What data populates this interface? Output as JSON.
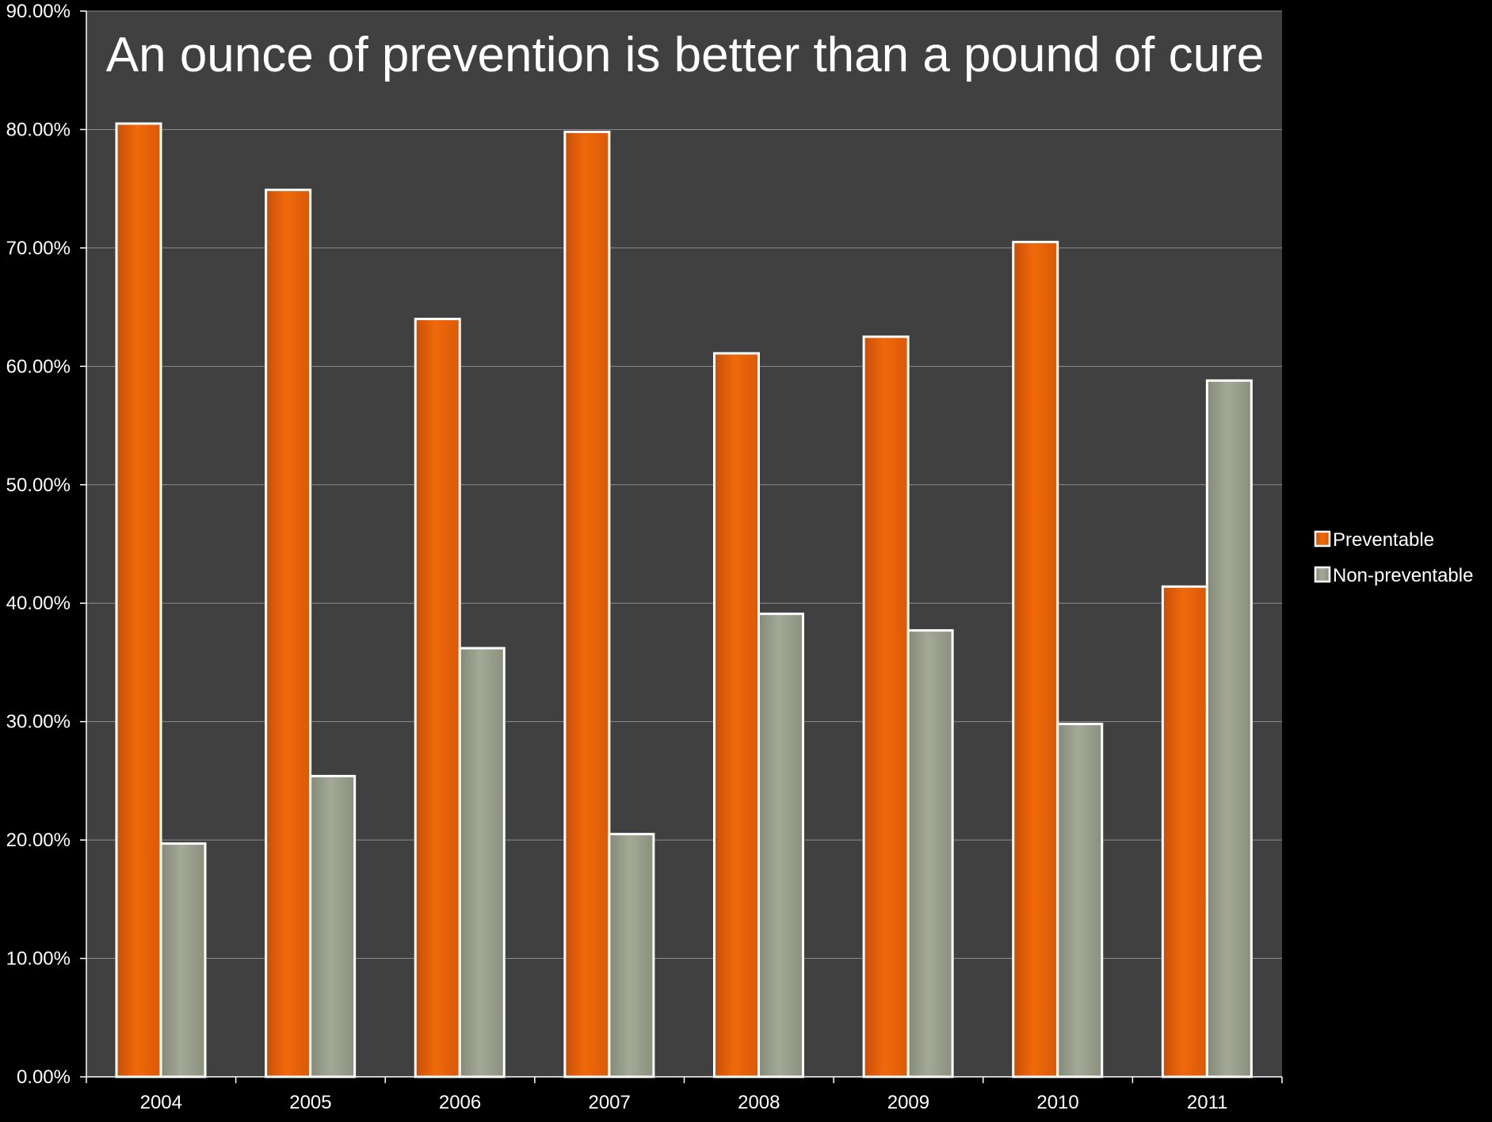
{
  "colors": {
    "background": "#000000",
    "plot_area": "#404040",
    "gridline": "#8c8c8c",
    "axis": "#ffffff",
    "preventable": "#e8620a",
    "non_preventable": "#9aa08e",
    "bar_border": "#ffffff"
  },
  "chart_data": {
    "type": "bar",
    "title": "An ounce of prevention is better than a pound of cure",
    "xlabel": "",
    "ylabel": "",
    "categories": [
      "2004",
      "2005",
      "2006",
      "2007",
      "2008",
      "2009",
      "2010",
      "2011"
    ],
    "series": [
      {
        "name": "Preventable",
        "color": "#e8620a",
        "values": [
          80.5,
          74.9,
          64.0,
          79.8,
          61.1,
          62.5,
          70.5,
          41.4
        ]
      },
      {
        "name": "Non-preventable",
        "color": "#9aa08e",
        "values": [
          19.7,
          25.4,
          36.2,
          20.5,
          39.1,
          37.7,
          29.8,
          58.8
        ]
      }
    ],
    "ylim": [
      0,
      90
    ],
    "y_ticks": [
      0,
      10,
      20,
      30,
      40,
      50,
      60,
      70,
      80,
      90
    ],
    "y_tick_labels": [
      "0.00%",
      "10.00%",
      "20.00%",
      "30.00%",
      "40.00%",
      "50.00%",
      "60.00%",
      "70.00%",
      "80.00%",
      "90.00%"
    ],
    "grid": true,
    "legend_position": "right"
  }
}
